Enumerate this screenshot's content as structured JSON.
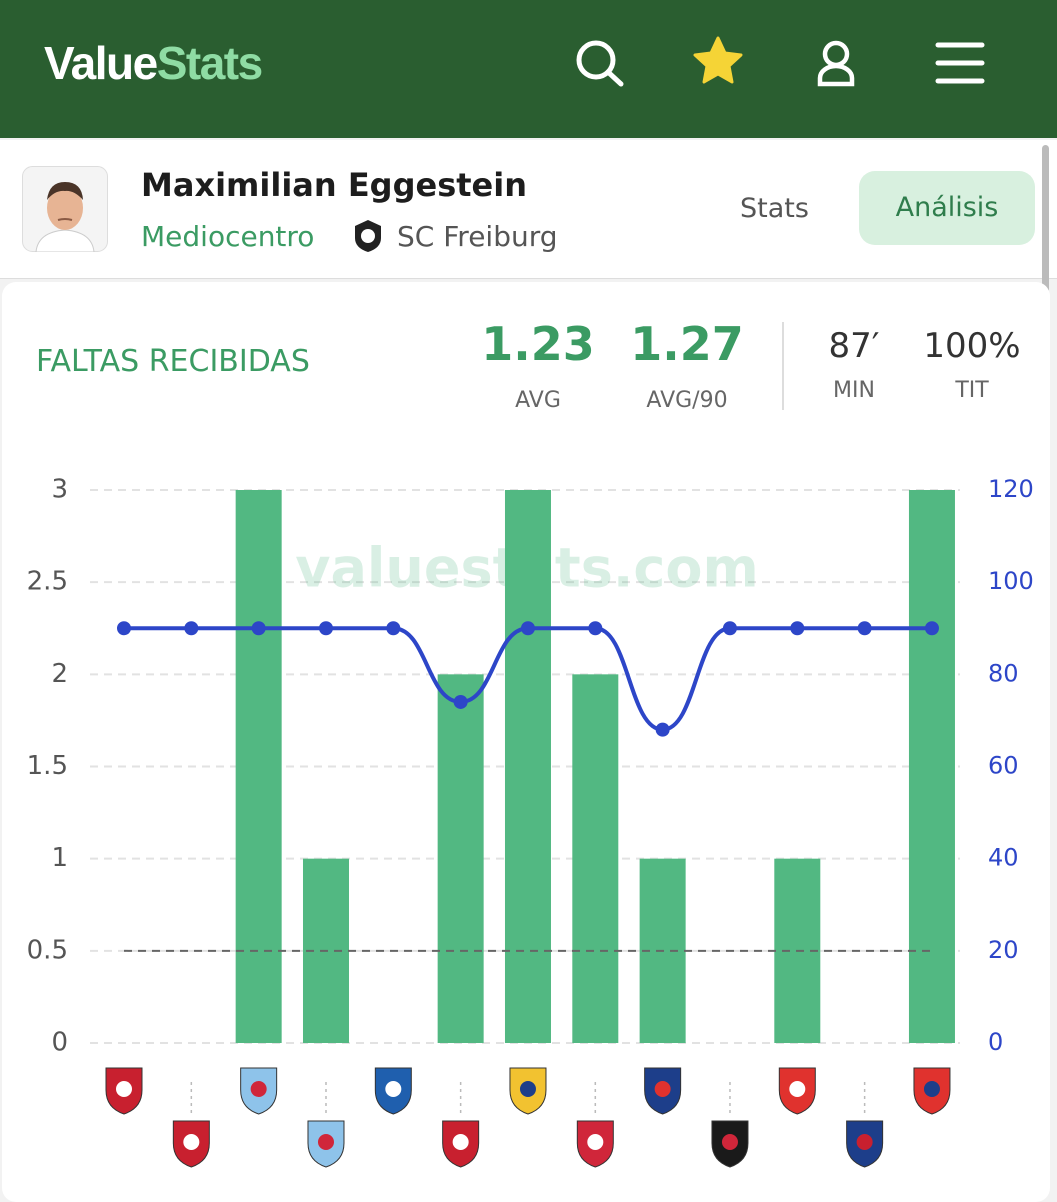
{
  "header": {
    "brand": {
      "first": "Value",
      "second": "Stats"
    }
  },
  "player": {
    "name": "Maximilian Eggestein",
    "position": "Mediocentro",
    "club": "SC Freiburg",
    "tabs": [
      "Stats",
      "Análisis"
    ]
  },
  "stats": [
    {
      "value": "1.23",
      "label": "AVG"
    },
    {
      "value": "1.27",
      "label": "AVG/90"
    },
    {
      "value": "87′",
      "label": "MIN"
    },
    {
      "value": "100%",
      "label": "TIT"
    }
  ],
  "chart_data": {
    "type": "bar",
    "title": "FALTAS RECIBIDAS",
    "watermark": "valuestats.com",
    "categories": [
      null,
      null,
      null,
      null,
      null,
      null,
      null,
      null,
      null,
      null,
      null,
      null,
      null
    ],
    "series": [
      {
        "color": "#52b882",
        "values": [
          0,
          0,
          3,
          1,
          0,
          2,
          3,
          2,
          1,
          0,
          1,
          0,
          3
        ]
      },
      {
        "type": "line",
        "axis": "y2",
        "color": "#2d46c8",
        "values": [
          90,
          90,
          90,
          90,
          90,
          74,
          90,
          90,
          68,
          90,
          90,
          90,
          90
        ]
      }
    ],
    "reference_line": 0.5,
    "ylim": [
      0,
      3
    ],
    "yticks": [
      0,
      0.5,
      1,
      1.5,
      2,
      2.5,
      3
    ],
    "y2lim": [
      0,
      120
    ],
    "y2ticks": [
      0,
      20,
      40,
      60,
      80,
      100,
      120
    ],
    "grid": true
  }
}
